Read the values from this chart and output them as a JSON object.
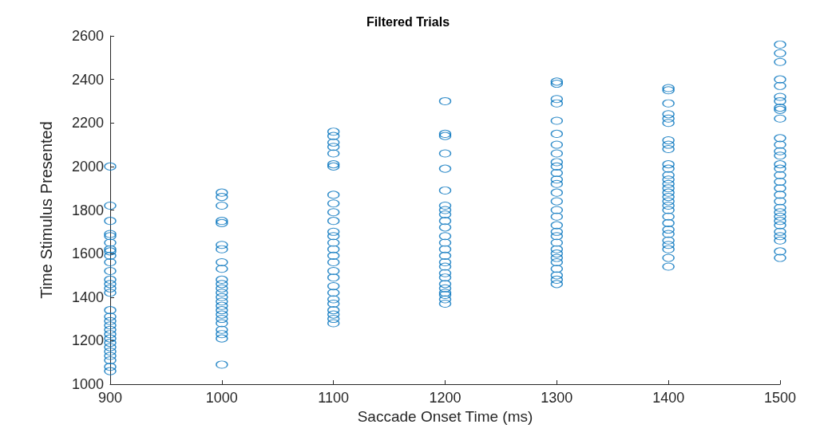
{
  "chart_data": {
    "type": "scatter",
    "title": "Filtered Trials",
    "xlabel": "Saccade Onset Time (ms)",
    "ylabel": "Time Stimulus Presented",
    "xlim": [
      900,
      1500
    ],
    "xticks": [
      900,
      1000,
      1100,
      1200,
      1300,
      1400,
      1500
    ],
    "ylim": [
      1000,
      2600
    ],
    "yticks": [
      1000,
      1200,
      1400,
      1600,
      1800,
      2000,
      2200,
      2400,
      2600
    ],
    "grid": false,
    "marker": "circle",
    "series": [
      {
        "color": "#0072bd",
        "x": [
          900,
          900,
          900,
          900,
          900,
          900,
          900,
          900,
          900,
          900,
          900,
          900,
          900,
          900,
          900,
          900,
          900,
          900,
          900,
          900,
          900,
          900,
          900,
          900,
          900,
          900,
          900,
          900,
          900
        ],
        "values": [
          2000,
          1820,
          1750,
          1690,
          1680,
          1650,
          1620,
          1610,
          1590,
          1560,
          1520,
          1480,
          1460,
          1440,
          1420,
          1340,
          1310,
          1290,
          1270,
          1250,
          1230,
          1210,
          1190,
          1170,
          1150,
          1130,
          1110,
          1080,
          1060
        ]
      },
      {
        "color": "#0072bd",
        "x": [
          1000,
          1000,
          1000,
          1000,
          1000,
          1000,
          1000,
          1000,
          1000,
          1000,
          1000,
          1000,
          1000,
          1000,
          1000,
          1000,
          1000,
          1000,
          1000,
          1000,
          1000,
          1000,
          1000,
          1000
        ],
        "values": [
          1880,
          1860,
          1820,
          1750,
          1740,
          1640,
          1620,
          1560,
          1530,
          1480,
          1460,
          1440,
          1420,
          1400,
          1380,
          1360,
          1340,
          1320,
          1300,
          1280,
          1250,
          1230,
          1210,
          1090
        ]
      },
      {
        "color": "#0072bd",
        "x": [
          1100,
          1100,
          1100,
          1100,
          1100,
          1100,
          1100,
          1100,
          1100,
          1100,
          1100,
          1100,
          1100,
          1100,
          1100,
          1100,
          1100,
          1100,
          1100,
          1100,
          1100,
          1100,
          1100,
          1100,
          1100,
          1100,
          1100
        ],
        "values": [
          2160,
          2140,
          2110,
          2090,
          2060,
          2010,
          2000,
          1870,
          1830,
          1790,
          1750,
          1700,
          1680,
          1650,
          1620,
          1590,
          1560,
          1520,
          1490,
          1450,
          1420,
          1390,
          1370,
          1340,
          1320,
          1300,
          1280
        ]
      },
      {
        "color": "#0072bd",
        "x": [
          1200,
          1200,
          1200,
          1200,
          1200,
          1200,
          1200,
          1200,
          1200,
          1200,
          1200,
          1200,
          1200,
          1200,
          1200,
          1200,
          1200,
          1200,
          1200,
          1200,
          1200,
          1200,
          1200,
          1200,
          1200
        ],
        "values": [
          2300,
          2150,
          2140,
          2060,
          1990,
          1890,
          1820,
          1800,
          1780,
          1750,
          1720,
          1680,
          1650,
          1620,
          1590,
          1560,
          1540,
          1510,
          1490,
          1460,
          1440,
          1420,
          1410,
          1390,
          1370
        ]
      },
      {
        "color": "#0072bd",
        "x": [
          1300,
          1300,
          1300,
          1300,
          1300,
          1300,
          1300,
          1300,
          1300,
          1300,
          1300,
          1300,
          1300,
          1300,
          1300,
          1300,
          1300,
          1300,
          1300,
          1300,
          1300,
          1300,
          1300,
          1300,
          1300,
          1300,
          1300,
          1300,
          1300
        ],
        "values": [
          2390,
          2380,
          2310,
          2290,
          2210,
          2150,
          2100,
          2060,
          2020,
          2000,
          1970,
          1940,
          1920,
          1880,
          1840,
          1800,
          1770,
          1730,
          1700,
          1680,
          1650,
          1620,
          1600,
          1580,
          1560,
          1530,
          1500,
          1480,
          1460
        ]
      },
      {
        "color": "#0072bd",
        "x": [
          1400,
          1400,
          1400,
          1400,
          1400,
          1400,
          1400,
          1400,
          1400,
          1400,
          1400,
          1400,
          1400,
          1400,
          1400,
          1400,
          1400,
          1400,
          1400,
          1400,
          1400,
          1400,
          1400,
          1400,
          1400,
          1400,
          1400,
          1400,
          1400
        ],
        "values": [
          2360,
          2350,
          2290,
          2240,
          2220,
          2200,
          2120,
          2100,
          2080,
          2010,
          1990,
          1960,
          1940,
          1920,
          1900,
          1880,
          1860,
          1840,
          1820,
          1800,
          1770,
          1740,
          1710,
          1690,
          1660,
          1640,
          1620,
          1580,
          1540
        ]
      },
      {
        "color": "#0072bd",
        "x": [
          1500,
          1500,
          1500,
          1500,
          1500,
          1500,
          1500,
          1500,
          1500,
          1500,
          1500,
          1500,
          1500,
          1500,
          1500,
          1500,
          1500,
          1500,
          1500,
          1500,
          1500,
          1500,
          1500,
          1500,
          1500,
          1500,
          1500,
          1500,
          1500,
          1500,
          1500
        ],
        "values": [
          2560,
          2520,
          2480,
          2400,
          2370,
          2320,
          2300,
          2270,
          2260,
          2220,
          2130,
          2100,
          2070,
          2050,
          2010,
          1990,
          1960,
          1930,
          1900,
          1870,
          1840,
          1810,
          1790,
          1770,
          1750,
          1730,
          1700,
          1680,
          1660,
          1610,
          1580
        ]
      }
    ]
  }
}
